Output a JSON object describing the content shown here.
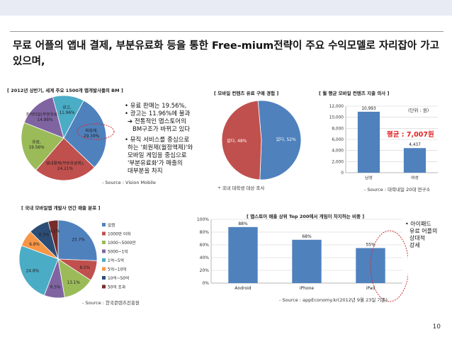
{
  "headline": "무료 어플의 앱내 결제, 부분유료화 등을 통한 Free-mium전략이 주요 수익모델로 자리잡아 가고 있으며,",
  "page_number": "10",
  "chart1": {
    "title": "[ 2012년 상반기, 세계 주요 1500개 앱개발사들의 BM ]",
    "source": "- Source : Vision Mobile",
    "chart_data": {
      "type": "pie",
      "slices": [
        {
          "label": "회원제, 29.39%",
          "value": 29.39,
          "color": "#4f81bd"
        },
        {
          "label": "앱내결제(부분유료화), 24.21%",
          "value": 24.21,
          "color": "#c0504d"
        },
        {
          "label": "유료, 19.56%",
          "value": 19.56,
          "color": "#9bbb59"
        },
        {
          "label": "프리미엄(부분유료화), 14.88%",
          "value": 14.88,
          "color": "#8064a2"
        },
        {
          "label": "광고, 11.96%",
          "value": 11.96,
          "color": "#4bacc6"
        }
      ]
    }
  },
  "chart1_notes": {
    "line1": "• 유료 판매는 19.56%,",
    "line2": "• 광고는 11.96%에 불과",
    "line3": "➔ 전통적인 앱스토어의",
    "line4": "BM구조가 바뀌고 있다",
    "line5": "• 뮤직 서비스를 중심으로",
    "line6": "하는 '회원제(월정액제)'와",
    "line7": "모바일 게임을 중심으로",
    "line8": "'부분유료화'가 매출의",
    "line9": "대부분을 차지"
  },
  "chart2": {
    "title": "[ 모바일 컨텐츠 유료 구매 경험 ]",
    "source": "* 국내 대학생 대상 조사",
    "chart_data": {
      "type": "pie",
      "slices": [
        {
          "label": "있다, 52%",
          "value": 52,
          "color": "#4f81bd"
        },
        {
          "label": "없다, 48%",
          "value": 48,
          "color": "#c0504d"
        }
      ]
    }
  },
  "chart3": {
    "title": "[ 월 평균 모바일 컨텐츠 지출 의사 ]",
    "unit": "(단위 : 원)",
    "avg_label": "평균 : 7,007원",
    "source": "- Source : 대학내일 20대 연구소",
    "chart_data": {
      "type": "bar",
      "categories": [
        "남성",
        "여성"
      ],
      "values": [
        10993,
        4437
      ],
      "value_labels": [
        "10,993",
        "4,437"
      ],
      "ylim": [
        0,
        12000
      ],
      "yticks": [
        "0",
        "2,000",
        "4,000",
        "6,000",
        "8,000",
        "10,000",
        "12,000"
      ],
      "color": "#4f81bd"
    }
  },
  "chart4": {
    "title": "[ 국내 모바일앱 개발사 연간 매출 분포 ]",
    "source": "- Source : 한국콘텐츠진흥원",
    "chart_data": {
      "type": "pie",
      "slices": [
        {
          "label": "없음",
          "pie_label": "25.7%",
          "value": 25.7,
          "color": "#4f81bd"
        },
        {
          "label": "1000만 이하",
          "pie_label": "8.5%",
          "value": 8.5,
          "color": "#c0504d"
        },
        {
          "label": "1000~5000만",
          "pie_label": "13.1%",
          "value": 13.1,
          "color": "#9bbb59"
        },
        {
          "label": "5000~1억",
          "pie_label": "8.5%",
          "value": 8.5,
          "color": "#8064a2"
        },
        {
          "label": "1억~5억",
          "pie_label": "24.8%",
          "value": 24.8,
          "color": "#4bacc6"
        },
        {
          "label": "5억~10억",
          "pie_label": "6.8%",
          "value": 6.8,
          "color": "#f79646"
        },
        {
          "label": "10억~50억",
          "pie_label": "8.5%",
          "value": 8.5,
          "color": "#2c4d75"
        },
        {
          "label": "50억 초과",
          "pie_label": "4.1%",
          "value": 4.1,
          "color": "#772c2a"
        }
      ]
    }
  },
  "chart5": {
    "title": "[ 앱스토어 매출 상위 Top 200에서 게임이 차지하는 비중 ]",
    "source": "- Source : appEconomy.kr(2012년 9월 23일 기준)",
    "chart_data": {
      "type": "bar",
      "categories": [
        "Android",
        "iPhone",
        "iPad"
      ],
      "values": [
        88,
        68,
        55
      ],
      "value_labels": [
        "88%",
        "68%",
        "55%"
      ],
      "ylim": [
        0,
        100
      ],
      "yticks": [
        "0%",
        "20%",
        "40%",
        "60%",
        "80%",
        "100%"
      ],
      "color": "#4f81bd"
    }
  },
  "chart5_note": {
    "line1": "• 아이패드",
    "line2": "유료 어플의",
    "line3": "상대적",
    "line4": "강세"
  }
}
